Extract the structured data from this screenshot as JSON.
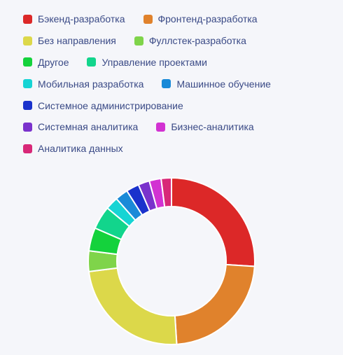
{
  "chart_data": {
    "type": "doughnut",
    "legend_position": "top",
    "series": [
      {
        "name": "Бэкенд-разработка",
        "value": 26.0,
        "color": "#dc2828"
      },
      {
        "name": "Фронтенд-разработка",
        "value": 23.0,
        "color": "#e0822c"
      },
      {
        "name": "Без направления",
        "value": 24.0,
        "color": "#dcd84a"
      },
      {
        "name": "Фуллстек-разработка",
        "value": 4.0,
        "color": "#7fd44a"
      },
      {
        "name": "Другое",
        "value": 4.5,
        "color": "#14d23c"
      },
      {
        "name": "Управление проектами",
        "value": 4.5,
        "color": "#12d58c"
      },
      {
        "name": "Мобильная разработка",
        "value": 2.5,
        "color": "#16d4d4"
      },
      {
        "name": "Машинное обучение",
        "value": 2.5,
        "color": "#1a8ad8"
      },
      {
        "name": "Системное администрирование",
        "value": 2.5,
        "color": "#1a32cc"
      },
      {
        "name": "Системная аналитика",
        "value": 2.2,
        "color": "#7a32cc"
      },
      {
        "name": "Бизнес-аналитика",
        "value": 2.3,
        "color": "#d232d2"
      },
      {
        "name": "Аналитика данных",
        "value": 2.0,
        "color": "#d82878"
      }
    ]
  }
}
